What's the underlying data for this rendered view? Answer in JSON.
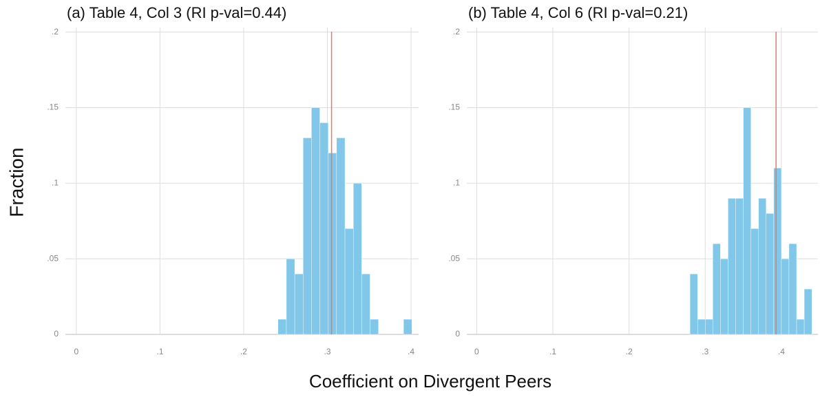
{
  "chart_data": [
    {
      "type": "histogram",
      "title": "(a) Table 4, Col 3 (RI p-val=0.44)",
      "bins": [
        0.241,
        0.251,
        0.261,
        0.271,
        0.281,
        0.291,
        0.301,
        0.311,
        0.321,
        0.331,
        0.341,
        0.351,
        0.361,
        0.371,
        0.381,
        0.391,
        0.401
      ],
      "values": [
        0.01,
        0.05,
        0.04,
        0.13,
        0.15,
        0.14,
        0.12,
        0.13,
        0.07,
        0.1,
        0.04,
        0.01,
        0,
        0,
        0,
        0.01
      ],
      "color": "#80c7e9",
      "vline": 0.305,
      "vline_color": "#e07a66",
      "xlim": [
        -0.013,
        0.409
      ],
      "ylim": [
        0,
        0.203
      ],
      "xticks": [
        0,
        {
          "value": 0.1,
          "label": ".1"
        },
        {
          "value": 0.2,
          "label": ".2"
        },
        {
          "value": 0.3,
          "label": ".3"
        },
        {
          "value": 0.4,
          "label": ".4"
        }
      ],
      "yticks": [
        0,
        {
          "value": 0.05,
          "label": ".05"
        },
        {
          "value": 0.1,
          "label": ".1"
        },
        {
          "value": 0.15,
          "label": ".15"
        },
        {
          "value": 0.2,
          "label": ".2"
        }
      ],
      "grid": true
    },
    {
      "type": "histogram",
      "title": "(b) Table 4, Col 6 (RI p-val=0.21)",
      "bins": [
        0.28,
        0.29,
        0.3,
        0.31,
        0.32,
        0.33,
        0.34,
        0.35,
        0.36,
        0.37,
        0.38,
        0.39,
        0.4,
        0.41,
        0.42,
        0.43,
        0.44
      ],
      "values": [
        0.04,
        0.01,
        0.01,
        0.06,
        0.05,
        0.09,
        0.09,
        0.15,
        0.07,
        0.09,
        0.08,
        0.11,
        0.05,
        0.06,
        0.01,
        0.03
      ],
      "color": "#80c7e9",
      "vline": 0.393,
      "vline_color": "#e07a66",
      "xlim": [
        -0.013,
        0.448
      ],
      "ylim": [
        0,
        0.203
      ],
      "xticks": [
        0,
        {
          "value": 0.1,
          "label": ".1"
        },
        {
          "value": 0.2,
          "label": ".2"
        },
        {
          "value": 0.3,
          "label": ".3"
        },
        {
          "value": 0.4,
          "label": ".4"
        }
      ],
      "yticks": [
        0,
        {
          "value": 0.05,
          "label": ".05"
        },
        {
          "value": 0.1,
          "label": ".1"
        },
        {
          "value": 0.15,
          "label": ".15"
        },
        {
          "value": 0.2,
          "label": ".2"
        }
      ],
      "grid": true
    }
  ],
  "ylabel": "Fraction",
  "xlabel": "Coefficient on Divergent Peers"
}
